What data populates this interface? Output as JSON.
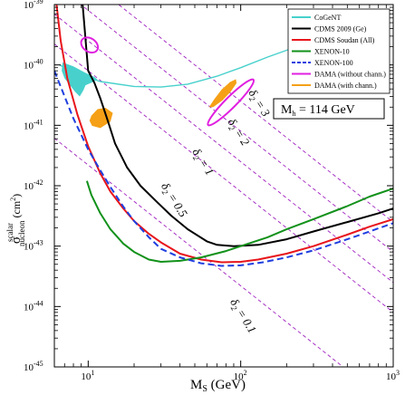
{
  "chart_data": {
    "type": "line",
    "xlabel": "M_S (GeV)",
    "xlabel_main": "M",
    "xlabel_sub": "S",
    "xlabel_unit": " (GeV)",
    "ylabel_main": "σ",
    "ylabel_sup": "scalar",
    "ylabel_sub": "nucleon",
    "ylabel_unit": " (cm",
    "ylabel_unit_pow": "2",
    "ylabel_unit_close": ")",
    "x_scale": "log",
    "y_scale": "log",
    "xlim": [
      6,
      1000
    ],
    "ylim": [
      1e-45,
      1e-39
    ],
    "x_ticks": [
      {
        "value": 10,
        "base": "10",
        "exp": "1"
      },
      {
        "value": 100,
        "base": "10",
        "exp": "2"
      },
      {
        "value": 1000,
        "base": "10",
        "exp": "3"
      }
    ],
    "y_ticks": [
      {
        "value": 1e-45,
        "base": "10",
        "exp": "-45"
      },
      {
        "value": 1e-44,
        "base": "10",
        "exp": "-44"
      },
      {
        "value": 1e-43,
        "base": "10",
        "exp": "-43"
      },
      {
        "value": 1e-42,
        "base": "10",
        "exp": "-42"
      },
      {
        "value": 1e-41,
        "base": "10",
        "exp": "-41"
      },
      {
        "value": 1e-40,
        "base": "10",
        "exp": "-40"
      },
      {
        "value": 1e-39,
        "base": "10",
        "exp": "-39"
      }
    ],
    "legend": {
      "placement": "top-right",
      "entries": [
        {
          "name": "CoGeNT",
          "color": "#48d1cc",
          "dash": false
        },
        {
          "name": "CDMS 2009 (Ge)",
          "color": "#000000",
          "dash": false
        },
        {
          "name": "CDMS Soudan (All)",
          "color": "#e8151b",
          "dash": false
        },
        {
          "name": "XENON-10",
          "color": "#11911a",
          "dash": false
        },
        {
          "name": "XENON-100",
          "color": "#1f3fe0",
          "dash": true
        },
        {
          "name": "DAMA (without chann.)",
          "color": "#e020e0",
          "dash": false
        },
        {
          "name": "DAMA (with chann.)",
          "color": "#f5a016",
          "dash": false
        }
      ]
    },
    "mh_box": "M_h = 114 GeV",
    "mh_main": "M",
    "mh_sub": "h",
    "mh_rest": " = 114 GeV",
    "series": [
      {
        "name": "CoGeNT",
        "color": "#48d1cc",
        "width": 1.4,
        "dash": false,
        "points": [
          [
            6.5,
            1e-40
          ],
          [
            8.5,
            7e-41
          ],
          [
            12,
            5.3e-41
          ],
          [
            20,
            4.4e-41
          ],
          [
            30,
            4.3e-41
          ],
          [
            45,
            4.8e-41
          ],
          [
            70,
            6.5e-41
          ],
          [
            100,
            9e-41
          ],
          [
            150,
            1.35e-40
          ],
          [
            200,
            1.75e-40
          ],
          [
            300,
            2.5e-40
          ],
          [
            450,
            3.8e-40
          ],
          [
            600,
            5.5e-40
          ],
          [
            800,
            8e-40
          ]
        ]
      },
      {
        "name": "CDMS 2009 (Ge)",
        "color": "#000000",
        "width": 2,
        "dash": false,
        "points": [
          [
            9.2,
            1e-39
          ],
          [
            10,
            8e-41
          ],
          [
            11,
            5e-41
          ],
          [
            12,
            2.8e-41
          ],
          [
            13.5,
            1.15e-41
          ],
          [
            15,
            5e-42
          ],
          [
            18,
            2e-42
          ],
          [
            22,
            1e-42
          ],
          [
            28,
            5.5e-43
          ],
          [
            35,
            3.2e-43
          ],
          [
            45,
            1.9e-43
          ],
          [
            60,
            1.2e-43
          ],
          [
            70,
            1.05e-43
          ],
          [
            90,
            1e-43
          ],
          [
            130,
            1.05e-43
          ],
          [
            200,
            1.3e-43
          ],
          [
            300,
            1.75e-43
          ],
          [
            500,
            2.5e-43
          ],
          [
            800,
            3.5e-43
          ],
          [
            1000,
            4.2e-43
          ]
        ]
      },
      {
        "name": "CDMS Soudan (All)",
        "color": "#e8151b",
        "width": 2,
        "dash": false,
        "points": [
          [
            6.2,
            1e-39
          ],
          [
            6.6,
            2.5e-40
          ],
          [
            7.3,
            6e-41
          ],
          [
            8.5,
            1.5e-41
          ],
          [
            10,
            4.5e-42
          ],
          [
            12,
            1.6e-42
          ],
          [
            14,
            8e-43
          ],
          [
            17,
            4.2e-43
          ],
          [
            20,
            2.6e-43
          ],
          [
            25,
            1.6e-43
          ],
          [
            30,
            1.15e-43
          ],
          [
            40,
            7.5e-44
          ],
          [
            55,
            6e-44
          ],
          [
            75,
            5.4e-44
          ],
          [
            100,
            5.5e-44
          ],
          [
            130,
            6e-44
          ],
          [
            200,
            7.5e-44
          ],
          [
            300,
            1e-43
          ],
          [
            500,
            1.55e-43
          ],
          [
            700,
            2.1e-43
          ],
          [
            1000,
            2.8e-43
          ]
        ]
      },
      {
        "name": "XENON-10",
        "color": "#11911a",
        "width": 2,
        "dash": false,
        "points": [
          [
            9.8,
            1.2e-42
          ],
          [
            10.5,
            7e-43
          ],
          [
            12,
            3.5e-43
          ],
          [
            14,
            1.9e-43
          ],
          [
            17,
            1.1e-43
          ],
          [
            20,
            8e-44
          ],
          [
            25,
            6e-44
          ],
          [
            30,
            5.5e-44
          ],
          [
            40,
            5.7e-44
          ],
          [
            55,
            6.5e-44
          ],
          [
            80,
            8.3e-44
          ],
          [
            100,
            1e-43
          ],
          [
            150,
            1.4e-43
          ],
          [
            200,
            1.9e-43
          ],
          [
            300,
            2.8e-43
          ],
          [
            500,
            4.6e-43
          ],
          [
            700,
            6.6e-43
          ],
          [
            1000,
            9e-43
          ]
        ]
      },
      {
        "name": "XENON-100",
        "color": "#1f3fe0",
        "width": 2,
        "dash": true,
        "points": [
          [
            6,
            8e-41
          ],
          [
            7,
            3e-41
          ],
          [
            8,
            1.3e-41
          ],
          [
            9,
            7e-42
          ],
          [
            10,
            4e-42
          ],
          [
            12,
            1.8e-42
          ],
          [
            14,
            9.5e-43
          ],
          [
            17,
            4.5e-43
          ],
          [
            20,
            2.6e-43
          ],
          [
            25,
            1.4e-43
          ],
          [
            30,
            9e-44
          ],
          [
            40,
            6.5e-44
          ],
          [
            55,
            5.2e-44
          ],
          [
            75,
            4.7e-44
          ],
          [
            100,
            4.8e-44
          ],
          [
            140,
            5.4e-44
          ],
          [
            200,
            6.5e-44
          ],
          [
            300,
            8.5e-44
          ],
          [
            500,
            1.3e-43
          ],
          [
            700,
            1.75e-43
          ],
          [
            1000,
            2.4e-43
          ]
        ]
      }
    ],
    "filled_regions": [
      {
        "name": "CoGeNT",
        "color": "#48d1cc",
        "points": [
          [
            6.8,
            1.1e-40
          ],
          [
            8,
            9.5e-41
          ],
          [
            9.5,
            7.5e-41
          ],
          [
            11,
            6.3e-41
          ],
          [
            11.5,
            5.7e-41
          ],
          [
            10.5,
            5.1e-41
          ],
          [
            9.6,
            4.6e-41
          ],
          [
            9.3,
            3.8e-41
          ],
          [
            8.8,
            3e-41
          ],
          [
            8.2,
            3.6e-41
          ],
          [
            7.5,
            4.8e-41
          ],
          [
            7,
            6e-41
          ],
          [
            6.7,
            8e-41
          ]
        ]
      },
      {
        "name": "DAMA (with chann.)",
        "color": "#f5a016",
        "points": [
          [
            10.5,
            1.45e-41
          ],
          [
            11.5,
            1.85e-41
          ],
          [
            13,
            1.95e-41
          ],
          [
            14.5,
            1.6e-41
          ],
          [
            14,
            1.15e-41
          ],
          [
            12,
            9e-42
          ],
          [
            10.6,
            9.8e-42
          ],
          [
            10.2,
            1.2e-41
          ]
        ]
      },
      {
        "name": "DAMA (with chann.)",
        "color": "#f5a016",
        "points": [
          [
            62,
            2e-41
          ],
          [
            67,
            2.7e-41
          ],
          [
            75,
            3.9e-41
          ],
          [
            85,
            5.2e-41
          ],
          [
            93,
            5.8e-41
          ],
          [
            94,
            5e-41
          ],
          [
            86,
            3.6e-41
          ],
          [
            76,
            2.6e-41
          ],
          [
            66,
            2e-41
          ]
        ]
      }
    ],
    "contours": [
      {
        "name": "DAMA (without chann.)",
        "color": "#e020e0",
        "cx_log": 1.0088,
        "cy_log": -39.67,
        "rx_log": 0.06,
        "ry_log": 0.11,
        "rot": 35
      },
      {
        "name": "DAMA (without chann.)",
        "color": "#e020e0",
        "cx_log": 1.935,
        "cy_log": -40.62,
        "rx_log": 0.21,
        "ry_log": 0.09,
        "rot": -45
      }
    ],
    "delta_lines": {
      "color": "#a020c0",
      "intercepts_at_x10": [
        2.5e-39,
        8e-40,
        2.5e-40,
        8e-41,
        2.2e-42
      ],
      "slope_decades_per_decade": -2,
      "labels": [
        {
          "text": "δ",
          "sub": "2",
          "value": " = 3",
          "x": 112,
          "y": 3.5e-41
        },
        {
          "text": "δ",
          "sub": "2",
          "value": " = 2",
          "x": 82,
          "y": 1.15e-41
        },
        {
          "text": "δ",
          "sub": "2",
          "value": " = 1",
          "x": 48,
          "y": 3.7e-42
        },
        {
          "text": "δ",
          "sub": "2",
          "value": " = 0.5",
          "x": 30,
          "y": 1e-42
        },
        {
          "text": "δ",
          "sub": "2",
          "value": " = 0.1",
          "x": 85,
          "y": 1.2e-44
        }
      ]
    }
  }
}
